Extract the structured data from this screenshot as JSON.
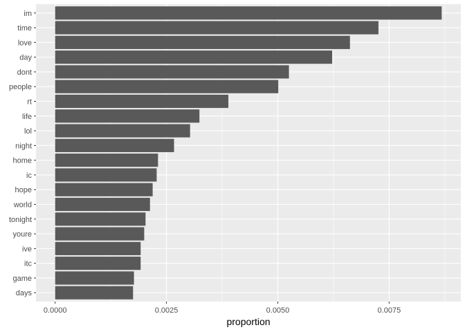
{
  "chart_data": {
    "type": "bar",
    "orientation": "horizontal",
    "categories": [
      "im",
      "time",
      "love",
      "day",
      "dont",
      "people",
      "rt",
      "life",
      "lol",
      "night",
      "home",
      "ic",
      "hope",
      "world",
      "tonight",
      "youre",
      "ive",
      "itc",
      "game",
      "days"
    ],
    "values": [
      0.00868,
      0.00726,
      0.00662,
      0.00622,
      0.00525,
      0.00501,
      0.00389,
      0.00324,
      0.00303,
      0.00267,
      0.00231,
      0.00228,
      0.00219,
      0.00213,
      0.00203,
      0.002,
      0.00192,
      0.00192,
      0.00177,
      0.00175
    ],
    "title": "",
    "xlabel": "proportion",
    "ylabel": "",
    "xlim": [
      -0.00043,
      0.00911
    ],
    "xticks": [
      0,
      0.0025,
      0.005,
      0.0075
    ],
    "xtick_labels": [
      "0.0000",
      "0.0025",
      "0.0050",
      "0.0075"
    ],
    "grid": true,
    "colors": {
      "bar": "#595959",
      "panel_background": "#ebebeb",
      "grid_major": "#ffffff",
      "tick_text": "#4d4d4d",
      "tick_mark": "#333333"
    }
  }
}
